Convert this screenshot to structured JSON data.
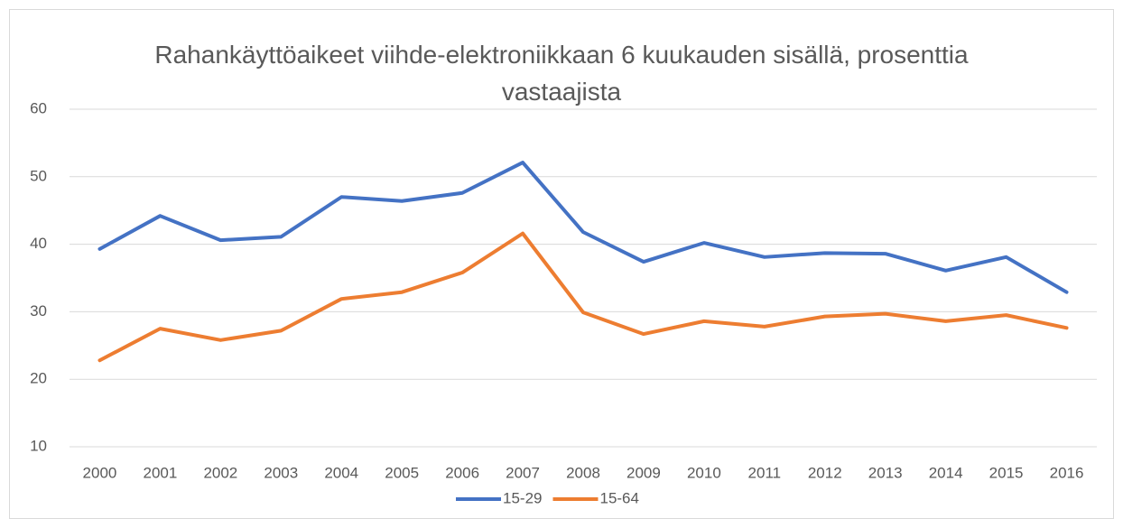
{
  "chart_data": {
    "type": "line",
    "title": "Rahankäyttöaikeet viihde-elektroniikkaan 6 kuukauden sisällä, prosenttia vastaajista",
    "categories": [
      "2000",
      "2001",
      "2002",
      "2003",
      "2004",
      "2005",
      "2006",
      "2007",
      "2008",
      "2009",
      "2010",
      "2011",
      "2012",
      "2013",
      "2014",
      "2015",
      "2016"
    ],
    "series": [
      {
        "name": "15-29",
        "color": "#4472c4",
        "values": [
          39.3,
          44.2,
          40.6,
          41.1,
          47.0,
          46.4,
          47.6,
          52.1,
          41.8,
          37.4,
          40.2,
          38.1,
          38.7,
          38.6,
          36.1,
          38.1,
          32.9
        ]
      },
      {
        "name": "15-64",
        "color": "#ed7d31",
        "values": [
          22.8,
          27.5,
          25.8,
          27.2,
          31.9,
          32.9,
          35.8,
          41.6,
          29.9,
          26.7,
          28.6,
          27.8,
          29.3,
          29.7,
          28.6,
          29.5,
          27.6
        ]
      }
    ],
    "ylim": [
      10,
      60
    ],
    "yticks": [
      10,
      20,
      30,
      40,
      50,
      60
    ],
    "grid": true,
    "legend": "bottom"
  }
}
